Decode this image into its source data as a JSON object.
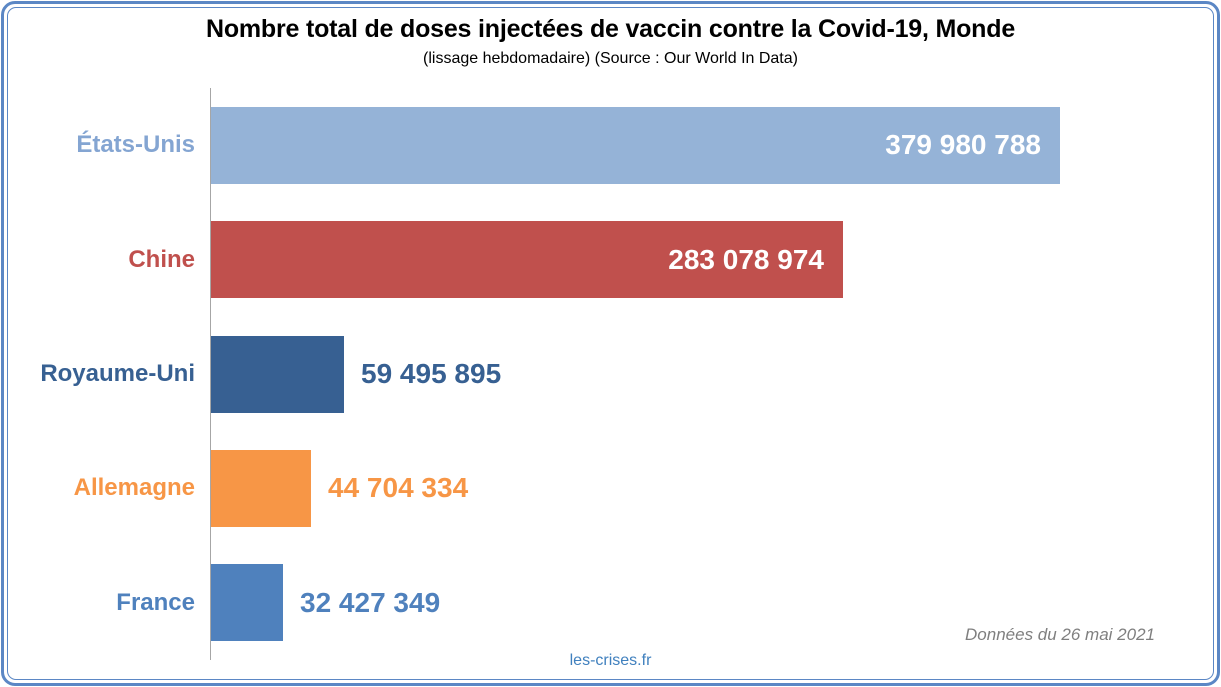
{
  "footer": {
    "site_credit": "les-crises.fr",
    "data_note": "Données du 26 mai 2021"
  },
  "chart_data": {
    "type": "bar",
    "orientation": "horizontal",
    "title": "Nombre total de doses injectées de vaccin contre la Covid-19, Monde",
    "subtitle": "(lissage hebdomadaire) (Source : Our World In Data)",
    "categories": [
      "États-Unis",
      "Chine",
      "Royaume-Uni",
      "Allemagne",
      "France"
    ],
    "values": [
      379980788,
      283078974,
      59495895,
      44704334,
      32427349
    ],
    "value_labels": [
      "379 980 788",
      "283 078 974",
      "59 495 895",
      "44 704 334",
      "32 427 349"
    ],
    "bar_colors": [
      "#95B3D7",
      "#C0504D",
      "#376092",
      "#F79646",
      "#4F81BD"
    ],
    "category_label_colors": [
      "#84A5D2",
      "#C0504D",
      "#376092",
      "#F79646",
      "#4F81BD"
    ],
    "value_label_inside": [
      true,
      true,
      false,
      false,
      false
    ],
    "value_label_colors": [
      "#FFFFFF",
      "#FFFFFF",
      "#376092",
      "#F79646",
      "#4F81BD"
    ],
    "xlim": [
      0,
      380000000
    ],
    "grid": false,
    "legend": false,
    "axis_line_color": "#A6A6A6"
  },
  "colors": {
    "border": "#5B87C5",
    "title": "#000000",
    "data_note": "#7F7F7F",
    "site_credit": "#4080BE"
  }
}
